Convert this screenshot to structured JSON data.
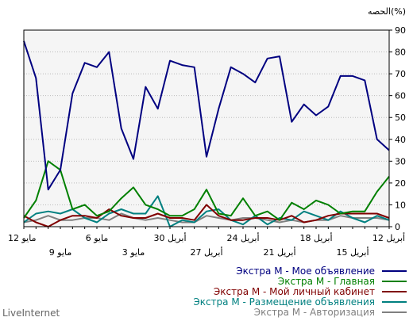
{
  "chart_data": {
    "type": "line",
    "unit_label": "الحصه(%)",
    "y_ticks": [
      0,
      10,
      20,
      30,
      40,
      50,
      60,
      70,
      80,
      90
    ],
    "ylim": [
      0,
      90
    ],
    "grid": true,
    "x_labels_top": [
      "مايو 12",
      "مايو 6",
      "أبريل 30",
      "أبريل 24",
      "أبريل 18",
      "أبريل 12"
    ],
    "x_labels_bottom": [
      "مايو 9",
      "مايو 3",
      "أبريل 27",
      "أبريل 21",
      "أبريل 15"
    ],
    "x_count": 31,
    "series": [
      {
        "name": "Экстра М - Мое объявление",
        "color": "#000080",
        "values": [
          85,
          68,
          17,
          26,
          61,
          75,
          73,
          80,
          45,
          31,
          64,
          54,
          76,
          74,
          73,
          32,
          54,
          73,
          70,
          66,
          77,
          78,
          48,
          56,
          51,
          55,
          69,
          69,
          67,
          40,
          35
        ]
      },
      {
        "name": "Экстра М - Главная",
        "color": "#008000",
        "values": [
          4,
          12,
          30,
          26,
          8,
          10,
          5,
          7,
          13,
          18,
          10,
          8,
          5,
          5,
          8,
          17,
          6,
          5,
          13,
          5,
          7,
          3,
          11,
          8,
          12,
          10,
          6,
          7,
          7,
          16,
          23
        ]
      },
      {
        "name": "Экстра М - Мой личный кабинет",
        "color": "#800000",
        "values": [
          5,
          2,
          0,
          3,
          5,
          5,
          4,
          8,
          5,
          4,
          4,
          6,
          4,
          4,
          3,
          10,
          5,
          3,
          3,
          4,
          4,
          3,
          5,
          2,
          3,
          5,
          6,
          6,
          6,
          6,
          4
        ]
      },
      {
        "name": "Экстра М - Размещение объявления",
        "color": "#008080",
        "values": [
          2,
          6,
          7,
          6,
          8,
          4,
          2,
          6,
          8,
          6,
          6,
          14,
          0,
          3,
          2,
          7,
          8,
          3,
          1,
          5,
          1,
          4,
          3,
          7,
          5,
          3,
          7,
          4,
          2,
          5,
          3
        ]
      },
      {
        "name": "Экстра М - Авторизация",
        "color": "#808080",
        "values": [
          2,
          3,
          5,
          3,
          3,
          4,
          4,
          3,
          6,
          4,
          3,
          4,
          3,
          2,
          2,
          5,
          4,
          3,
          4,
          4,
          3,
          2,
          3,
          2,
          3,
          3,
          5,
          4,
          4,
          4,
          3
        ]
      }
    ]
  },
  "footer": {
    "brand": "LiveInternet"
  }
}
